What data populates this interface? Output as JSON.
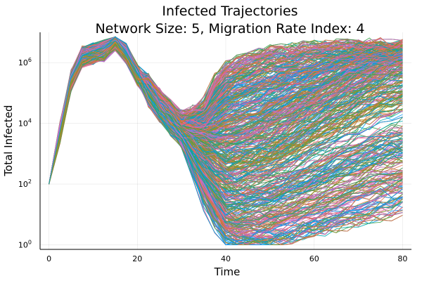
{
  "chart_data": {
    "type": "line",
    "title_line1": "Infected Trajectories",
    "title_line2": "Network Size: 5, Migration Rate Index: 4",
    "xlabel": "Time",
    "ylabel": "Total Infected",
    "xlim": [
      -2,
      82
    ],
    "ylog10lim": [
      -0.15,
      7.0
    ],
    "yscale": "log",
    "grid": true,
    "legend": "none",
    "x_ticks": [
      0,
      20,
      40,
      60,
      80
    ],
    "y_ticks": [
      {
        "base": "10",
        "exp": "0",
        "log10": 0
      },
      {
        "base": "10",
        "exp": "2",
        "log10": 2
      },
      {
        "base": "10",
        "exp": "4",
        "log10": 4
      },
      {
        "base": "10",
        "exp": "6",
        "log10": 6
      }
    ],
    "series_colors": [
      "#009AFA",
      "#E36F47",
      "#3EA44E",
      "#C371D2",
      "#AC8E18",
      "#00AAAE",
      "#ED5E93"
    ],
    "trajectory_count": 1000,
    "trajectory_summary": {
      "time": [
        0,
        2.5,
        5,
        7.5,
        10,
        12.5,
        15,
        17.5,
        20,
        25,
        30,
        35,
        40,
        50,
        60,
        70,
        80
      ],
      "median_log10": [
        2.0,
        3.7,
        5.4,
        6.2,
        6.3,
        6.4,
        6.75,
        6.3,
        5.6,
        4.55,
        3.8,
        3.4,
        3.15,
        3.6,
        4.5,
        5.4,
        6.0
      ],
      "min_log10": [
        2.0,
        2.5,
        4.8,
        5.8,
        5.9,
        5.7,
        6.2,
        5.8,
        5.2,
        4.2,
        3.3,
        1.5,
        0.0,
        0.0,
        0.4,
        0.8,
        1.3
      ],
      "max_log10": [
        2.0,
        4.2,
        5.8,
        6.4,
        6.5,
        6.9,
        6.9,
        6.7,
        6.0,
        5.0,
        4.3,
        4.6,
        6.0,
        6.5,
        6.6,
        6.7,
        6.65
      ]
    }
  }
}
